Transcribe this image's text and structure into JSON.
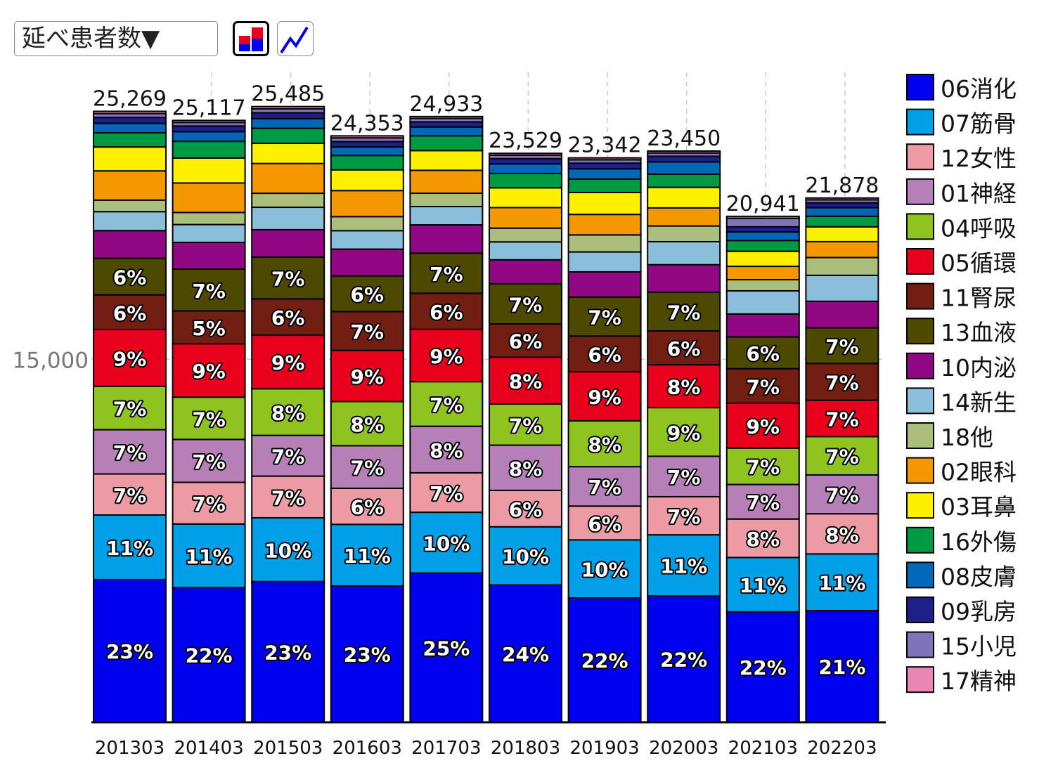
{
  "controls": {
    "metric_select": "延べ患者数▼",
    "bar_icon": "stacked-bar-chart-icon",
    "line_icon": "line-chart-icon"
  },
  "chart_data": {
    "type": "bar",
    "stacked": true,
    "categories": [
      "201303",
      "201403",
      "201503",
      "201603",
      "201703",
      "201803",
      "201903",
      "202003",
      "202103",
      "202203"
    ],
    "totals": [
      25269,
      25117,
      25485,
      24353,
      24933,
      23529,
      23342,
      23450,
      20941,
      21878
    ],
    "total_labels": [
      "25,269",
      "25,117",
      "25,485",
      "24,353",
      "24,933",
      "23,529",
      "23,342",
      "23,450",
      "20,941",
      "21,878"
    ],
    "ytick": {
      "value": 15000,
      "label": "15,000"
    },
    "ylim": [
      0,
      25485
    ],
    "grid": "dashed vertical and horizontal",
    "legend_position": "right",
    "series": [
      {
        "name": "06消化",
        "color": "#0000f0",
        "values": [
          5879,
          5545,
          5799,
          5615,
          6149,
          5656,
          5119,
          5203,
          4544,
          4597
        ],
        "labels": [
          "23%",
          "22%",
          "23%",
          "23%",
          "25%",
          "24%",
          "22%",
          "22%",
          "22%",
          "21%"
        ]
      },
      {
        "name": "07筋骨",
        "color": "#00a0e8",
        "values": [
          2674,
          2637,
          2639,
          2549,
          2518,
          2409,
          2403,
          2531,
          2249,
          2345
        ],
        "labels": [
          "11%",
          "11%",
          "10%",
          "11%",
          "10%",
          "10%",
          "10%",
          "11%",
          "11%",
          "11%"
        ]
      },
      {
        "name": "12女性",
        "color": "#ec9aa4",
        "values": [
          1701,
          1724,
          1727,
          1496,
          1634,
          1508,
          1401,
          1577,
          1595,
          1663
        ],
        "labels": [
          "7%",
          "7%",
          "7%",
          "6%",
          "7%",
          "6%",
          "6%",
          "7%",
          "8%",
          "8%"
        ]
      },
      {
        "name": "01神経",
        "color": "#b77fb7",
        "values": [
          1832,
          1777,
          1686,
          1765,
          1926,
          1873,
          1633,
          1673,
          1429,
          1607
        ],
        "labels": [
          "7%",
          "7%",
          "7%",
          "7%",
          "8%",
          "8%",
          "7%",
          "7%",
          "7%",
          "7%"
        ]
      },
      {
        "name": "04呼吸",
        "color": "#8fc31f",
        "values": [
          1795,
          1751,
          1931,
          1826,
          1848,
          1705,
          1897,
          2016,
          1509,
          1588
        ],
        "labels": [
          "7%",
          "7%",
          "8%",
          "8%",
          "7%",
          "7%",
          "8%",
          "9%",
          "7%",
          "7%"
        ]
      },
      {
        "name": "05循環",
        "color": "#e8001c",
        "values": [
          2354,
          2212,
          2215,
          2115,
          2167,
          1935,
          2033,
          1775,
          1856,
          1504
        ],
        "labels": [
          "9%",
          "9%",
          "9%",
          "9%",
          "9%",
          "8%",
          "9%",
          "8%",
          "9%",
          "7%"
        ]
      },
      {
        "name": "11腎尿",
        "color": "#731e12",
        "values": [
          1434,
          1357,
          1506,
          1611,
          1493,
          1380,
          1477,
          1403,
          1431,
          1525
        ],
        "labels": [
          "6%",
          "5%",
          "6%",
          "7%",
          "6%",
          "6%",
          "6%",
          "6%",
          "7%",
          "7%"
        ]
      },
      {
        "name": "13血液",
        "color": "#4d4a00",
        "values": [
          1512,
          1732,
          1729,
          1477,
          1660,
          1664,
          1616,
          1603,
          1315,
          1476
        ],
        "labels": [
          "6%",
          "7%",
          "7%",
          "6%",
          "7%",
          "7%",
          "7%",
          "7%",
          "6%",
          "7%"
        ]
      },
      {
        "name": "10内泌",
        "color": "#920783",
        "values": [
          1148,
          1107,
          1135,
          1108,
          1172,
          991,
          1041,
          1137,
          950,
          1098
        ],
        "labels": [
          "",
          "",
          "",
          "",
          "",
          "",
          "",
          "",
          "",
          ""
        ]
      },
      {
        "name": "14新生",
        "color": "#8abedb",
        "values": [
          785,
          738,
          928,
          764,
          758,
          741,
          826,
          953,
          957,
          1075
        ],
        "labels": [
          "",
          "",
          "",
          "",
          "",
          "",
          "",
          "",
          "",
          ""
        ]
      },
      {
        "name": "18他",
        "color": "#a9bf7b",
        "values": [
          479,
          499,
          580,
          582,
          552,
          570,
          706,
          651,
          463,
          737
        ],
        "labels": [
          "",
          "",
          "",
          "",
          "",
          "",
          "",
          "",
          "",
          ""
        ]
      },
      {
        "name": "02眼科",
        "color": "#f39800",
        "values": [
          1210,
          1222,
          1234,
          1079,
          948,
          849,
          848,
          747,
          552,
          658
        ],
        "labels": [
          "",
          "",
          "",
          "",
          "",
          "",
          "",
          "",
          "",
          ""
        ]
      },
      {
        "name": "03耳鼻",
        "color": "#fff000",
        "values": [
          990,
          1031,
          834,
          859,
          818,
          821,
          907,
          852,
          624,
          615
        ],
        "labels": [
          "",
          "",
          "",
          "",
          "",
          "",
          "",
          "",
          "",
          ""
        ]
      },
      {
        "name": "16外傷",
        "color": "#009944",
        "values": [
          587,
          695,
          622,
          595,
          612,
          593,
          556,
          547,
          447,
          437
        ],
        "labels": [
          "",
          "",
          "",
          "",
          "",
          "",
          "",
          "",
          "",
          ""
        ]
      },
      {
        "name": "08皮膚",
        "color": "#0068b7",
        "values": [
          389,
          400,
          401,
          353,
          362,
          399,
          427,
          508,
          353,
          354
        ],
        "labels": [
          "",
          "",
          "",
          "",
          "",
          "",
          "",
          "",
          "",
          ""
        ]
      },
      {
        "name": "09乳房",
        "color": "#1d2088",
        "values": [
          245,
          233,
          242,
          221,
          215,
          215,
          231,
          230,
          211,
          201
        ],
        "labels": [
          "",
          "",
          "",
          "",
          "",
          "",
          "",
          "",
          "",
          ""
        ]
      },
      {
        "name": "15小児",
        "color": "#8074b8",
        "values": [
          163,
          150,
          161,
          153,
          143,
          144,
          142,
          140,
          355,
          125
        ],
        "labels": [
          "",
          "",
          "",
          "",
          "",
          "",
          "",
          "",
          "",
          ""
        ]
      },
      {
        "name": "17精神",
        "color": "#eb87b6",
        "values": [
          92,
          83,
          96,
          85,
          78,
          76,
          79,
          78,
          81,
          75
        ],
        "labels": [
          "",
          "",
          "",
          "",
          "",
          "",
          "",
          "",
          "",
          ""
        ]
      }
    ]
  }
}
